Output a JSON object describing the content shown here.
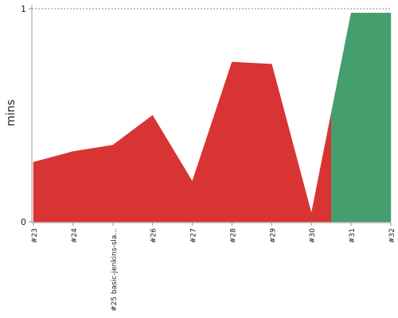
{
  "chart_data": {
    "type": "area",
    "y_label": "mins",
    "categories": [
      "#23",
      "#24",
      "#25 basic-jenkins-sla...",
      "#26",
      "#27",
      "#28",
      "#29",
      "#30",
      "#31",
      "#32"
    ],
    "values": [
      0.28,
      0.33,
      0.36,
      0.5,
      0.19,
      0.75,
      0.74,
      0.04,
      0.98,
      0.98
    ],
    "colors": [
      "#d83434",
      "#d83434",
      "#d83434",
      "#d83434",
      "#d83434",
      "#d83434",
      "#d83434",
      "#d83434",
      "#459e6e",
      "#459e6e"
    ],
    "ylim": [
      0,
      1
    ],
    "yticks": [
      0,
      1
    ],
    "grid": true
  }
}
